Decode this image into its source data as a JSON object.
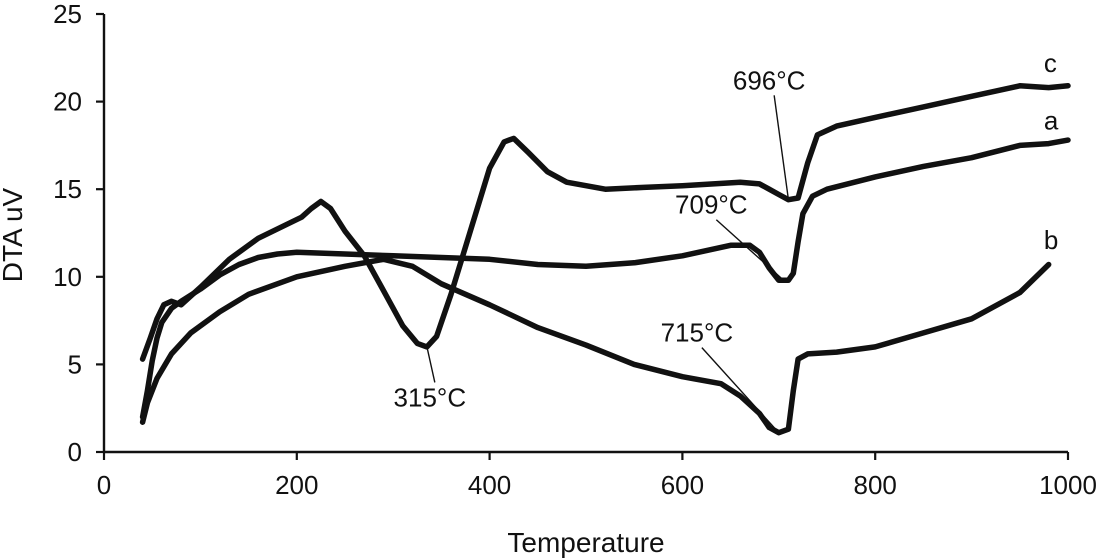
{
  "chart_data": {
    "type": "line",
    "title": "",
    "xlabel": "Temperature",
    "ylabel": "DTA uV",
    "xlim": [
      0,
      1000
    ],
    "ylim": [
      0,
      25
    ],
    "x_ticks": [
      "0",
      "200",
      "400",
      "600",
      "800",
      "1000"
    ],
    "y_ticks": [
      "0",
      "5",
      "10",
      "15",
      "20",
      "25"
    ],
    "grid": false,
    "series": [
      {
        "name": "a",
        "color": "#111111",
        "points": [
          [
            40,
            2.0
          ],
          [
            45,
            3.5
          ],
          [
            50,
            5.2
          ],
          [
            55,
            6.5
          ],
          [
            60,
            7.4
          ],
          [
            70,
            8.2
          ],
          [
            80,
            8.6
          ],
          [
            100,
            9.3
          ],
          [
            120,
            10.1
          ],
          [
            140,
            10.7
          ],
          [
            160,
            11.1
          ],
          [
            180,
            11.3
          ],
          [
            200,
            11.4
          ],
          [
            250,
            11.3
          ],
          [
            300,
            11.2
          ],
          [
            350,
            11.1
          ],
          [
            400,
            11.0
          ],
          [
            450,
            10.7
          ],
          [
            500,
            10.6
          ],
          [
            550,
            10.8
          ],
          [
            600,
            11.2
          ],
          [
            650,
            11.8
          ],
          [
            670,
            11.8
          ],
          [
            680,
            11.4
          ],
          [
            690,
            10.5
          ],
          [
            700,
            9.8
          ],
          [
            710,
            9.8
          ],
          [
            715,
            10.2
          ],
          [
            720,
            12.0
          ],
          [
            725,
            13.6
          ],
          [
            735,
            14.6
          ],
          [
            750,
            15.0
          ],
          [
            800,
            15.7
          ],
          [
            850,
            16.3
          ],
          [
            900,
            16.8
          ],
          [
            950,
            17.5
          ],
          [
            980,
            17.6
          ],
          [
            1000,
            17.8
          ]
        ]
      },
      {
        "name": "b",
        "color": "#111111",
        "points": [
          [
            40,
            1.7
          ],
          [
            45,
            2.8
          ],
          [
            55,
            4.2
          ],
          [
            70,
            5.6
          ],
          [
            90,
            6.8
          ],
          [
            120,
            8.0
          ],
          [
            150,
            9.0
          ],
          [
            200,
            10.0
          ],
          [
            250,
            10.6
          ],
          [
            290,
            11.0
          ],
          [
            320,
            10.6
          ],
          [
            350,
            9.6
          ],
          [
            400,
            8.4
          ],
          [
            450,
            7.1
          ],
          [
            500,
            6.1
          ],
          [
            550,
            5.0
          ],
          [
            600,
            4.3
          ],
          [
            640,
            3.9
          ],
          [
            660,
            3.2
          ],
          [
            680,
            2.2
          ],
          [
            690,
            1.4
          ],
          [
            700,
            1.1
          ],
          [
            710,
            1.3
          ],
          [
            715,
            3.5
          ],
          [
            720,
            5.3
          ],
          [
            730,
            5.6
          ],
          [
            760,
            5.7
          ],
          [
            800,
            6.0
          ],
          [
            850,
            6.8
          ],
          [
            900,
            7.6
          ],
          [
            950,
            9.1
          ],
          [
            980,
            10.7
          ]
        ]
      },
      {
        "name": "c",
        "color": "#111111",
        "points": [
          [
            40,
            5.3
          ],
          [
            48,
            6.5
          ],
          [
            55,
            7.6
          ],
          [
            62,
            8.4
          ],
          [
            70,
            8.6
          ],
          [
            80,
            8.4
          ],
          [
            100,
            9.4
          ],
          [
            130,
            11.0
          ],
          [
            160,
            12.2
          ],
          [
            190,
            13.0
          ],
          [
            205,
            13.4
          ],
          [
            215,
            13.9
          ],
          [
            225,
            14.3
          ],
          [
            235,
            13.9
          ],
          [
            250,
            12.6
          ],
          [
            270,
            11.2
          ],
          [
            290,
            9.2
          ],
          [
            310,
            7.2
          ],
          [
            325,
            6.2
          ],
          [
            335,
            6.0
          ],
          [
            345,
            6.6
          ],
          [
            360,
            9.0
          ],
          [
            380,
            12.6
          ],
          [
            400,
            16.2
          ],
          [
            415,
            17.7
          ],
          [
            425,
            17.9
          ],
          [
            440,
            17.1
          ],
          [
            460,
            16.0
          ],
          [
            480,
            15.4
          ],
          [
            520,
            15.0
          ],
          [
            560,
            15.1
          ],
          [
            600,
            15.2
          ],
          [
            660,
            15.4
          ],
          [
            680,
            15.3
          ],
          [
            690,
            15.0
          ],
          [
            700,
            14.7
          ],
          [
            710,
            14.4
          ],
          [
            720,
            14.5
          ],
          [
            730,
            16.5
          ],
          [
            740,
            18.1
          ],
          [
            760,
            18.6
          ],
          [
            800,
            19.1
          ],
          [
            850,
            19.7
          ],
          [
            900,
            20.3
          ],
          [
            950,
            20.9
          ],
          [
            980,
            20.8
          ],
          [
            1000,
            20.9
          ]
        ]
      }
    ],
    "annotations": [
      {
        "text": "696°C",
        "series": "c",
        "at": [
          710,
          14.4
        ],
        "label_pos": [
          690,
          20.7
        ]
      },
      {
        "text": "709°C",
        "series": "a",
        "at": [
          705,
          9.8
        ],
        "label_pos": [
          630,
          13.6
        ]
      },
      {
        "text": "715°C",
        "series": "b",
        "at": [
          700,
          1.1
        ],
        "label_pos": [
          615,
          6.3
        ]
      },
      {
        "text": "315°C",
        "series": "c",
        "at": [
          335,
          6.0
        ],
        "label_pos": [
          338,
          2.6
        ]
      }
    ],
    "series_labels": [
      {
        "text": "c",
        "at": [
          975,
          21.7
        ]
      },
      {
        "text": "a",
        "at": [
          975,
          18.4
        ]
      },
      {
        "text": "b",
        "at": [
          975,
          11.6
        ]
      }
    ]
  }
}
